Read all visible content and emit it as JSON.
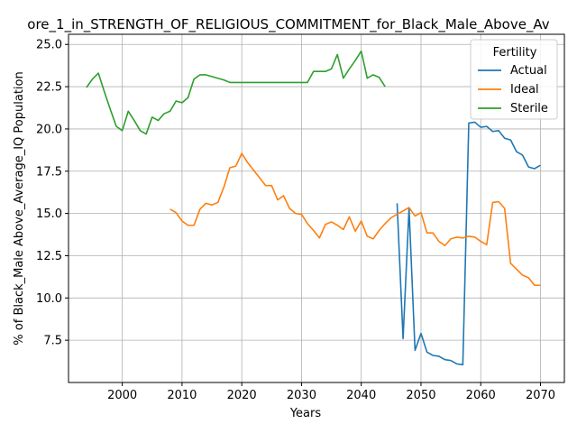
{
  "chart_data": {
    "type": "line",
    "title": "ore_1_in_STRENGTH_OF_RELIGIOUS_COMMITMENT_for_Black_Male_Above_Av",
    "xlabel": "Years",
    "ylabel": "% of Black_Male Above_Average_IQ Population",
    "xlim": [
      1991,
      2074
    ],
    "ylim": [
      5.0,
      25.6
    ],
    "xticks": [
      2000,
      2010,
      2020,
      2030,
      2040,
      2050,
      2060,
      2070
    ],
    "yticks": [
      7.5,
      10.0,
      12.5,
      15.0,
      17.5,
      20.0,
      22.5,
      25.0
    ],
    "ytick_labels": [
      "7.5",
      "10.0",
      "12.5",
      "15.0",
      "17.5",
      "20.0",
      "22.5",
      "25.0"
    ],
    "grid": true,
    "legend": {
      "title": "Fertility",
      "placement": "top-right"
    },
    "series": [
      {
        "name": "Actual",
        "color": "#1f77b4",
        "x": [
          2046,
          2047,
          2048,
          2049,
          2050,
          2051,
          2052,
          2053,
          2054,
          2055,
          2056,
          2057,
          2058,
          2059,
          2060,
          2061,
          2062,
          2063,
          2064,
          2065,
          2066,
          2067,
          2068,
          2069,
          2070
        ],
        "y": [
          15.6,
          7.6,
          15.3,
          6.9,
          7.9,
          6.8,
          6.6,
          6.55,
          6.35,
          6.3,
          6.1,
          6.05,
          20.35,
          20.4,
          20.1,
          20.15,
          19.85,
          19.9,
          19.45,
          19.35,
          18.65,
          18.45,
          17.75,
          17.65,
          17.85
        ]
      },
      {
        "name": "Ideal",
        "color": "#ff7f0e",
        "x": [
          2008,
          2009,
          2010,
          2011,
          2012,
          2013,
          2014,
          2015,
          2016,
          2017,
          2018,
          2019,
          2020,
          2021,
          2022,
          2023,
          2024,
          2025,
          2026,
          2027,
          2028,
          2029,
          2030,
          2031,
          2032,
          2033,
          2034,
          2035,
          2036,
          2037,
          2038,
          2039,
          2040,
          2041,
          2042,
          2043,
          2044,
          2045,
          2046,
          2047,
          2048,
          2049,
          2050,
          2051,
          2052,
          2053,
          2054,
          2055,
          2056,
          2057,
          2058,
          2059,
          2060,
          2061,
          2062,
          2063,
          2064,
          2065,
          2066,
          2067,
          2068,
          2069,
          2070
        ],
        "y": [
          15.25,
          15.05,
          14.55,
          14.3,
          14.3,
          15.25,
          15.6,
          15.5,
          15.65,
          16.55,
          17.7,
          17.8,
          18.55,
          18.0,
          17.55,
          17.1,
          16.65,
          16.65,
          15.8,
          16.05,
          15.3,
          15.0,
          14.95,
          14.4,
          14.0,
          13.55,
          14.35,
          14.5,
          14.3,
          14.05,
          14.8,
          13.95,
          14.55,
          13.65,
          13.5,
          14.0,
          14.4,
          14.75,
          14.95,
          15.15,
          15.35,
          14.85,
          15.05,
          13.85,
          13.85,
          13.35,
          13.1,
          13.5,
          13.6,
          13.55,
          13.65,
          13.6,
          13.35,
          13.15,
          15.65,
          15.7,
          15.3,
          12.05,
          11.7,
          11.35,
          11.2,
          10.75,
          10.75
        ]
      },
      {
        "name": "Sterile",
        "color": "#2ca02c",
        "x": [
          1994,
          1995,
          1996,
          1997,
          1998,
          1999,
          2000,
          2001,
          2002,
          2003,
          2004,
          2005,
          2006,
          2007,
          2008,
          2009,
          2010,
          2011,
          2012,
          2013,
          2014,
          2015,
          2016,
          2017,
          2018,
          2019,
          2020,
          2021,
          2022,
          2023,
          2024,
          2025,
          2026,
          2027,
          2028,
          2029,
          2030,
          2031,
          2032,
          2033,
          2034,
          2035,
          2036,
          2037,
          2038,
          2039,
          2040,
          2041,
          2042,
          2043,
          2044
        ],
        "y": [
          22.45,
          22.95,
          23.3,
          22.2,
          21.15,
          20.15,
          19.9,
          21.05,
          20.5,
          19.9,
          19.7,
          20.7,
          20.5,
          20.9,
          21.05,
          21.65,
          21.55,
          21.85,
          22.95,
          23.2,
          23.2,
          23.1,
          23.0,
          22.9,
          22.75,
          22.75,
          22.75,
          22.75,
          22.75,
          22.75,
          22.75,
          22.75,
          22.75,
          22.75,
          22.75,
          22.75,
          22.75,
          22.75,
          23.4,
          23.4,
          23.4,
          23.55,
          24.4,
          23.0,
          23.55,
          24.05,
          24.6,
          23.0,
          23.2,
          23.05,
          22.5
        ]
      }
    ]
  }
}
